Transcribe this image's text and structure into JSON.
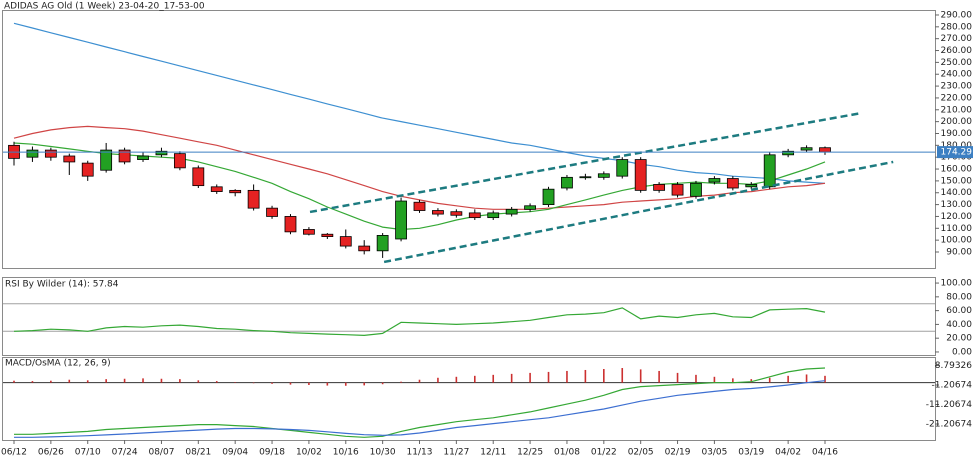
{
  "chart_data": [
    {
      "type": "candlestick",
      "title": "ADIDAS AG Old (1 Week) 23-04-20_17-53-00",
      "categories": [
        "06/12",
        null,
        "06/26",
        null,
        "07/10",
        null,
        "07/24",
        null,
        "08/07",
        null,
        "08/21",
        null,
        "09/04",
        null,
        "09/18",
        null,
        "10/02",
        null,
        "10/16",
        null,
        "10/30",
        null,
        "11/13",
        null,
        "11/27",
        null,
        "12/11",
        null,
        "12/25",
        null,
        "01/08",
        null,
        "01/22",
        null,
        "02/05",
        null,
        "02/19",
        null,
        "03/05",
        null,
        "03/19",
        null,
        "04/02",
        null,
        "04/16"
      ],
      "open": [
        180,
        170,
        176,
        171,
        165,
        159,
        176,
        168,
        172,
        173,
        161,
        145,
        142,
        142,
        127,
        120,
        109,
        105,
        103,
        95,
        91,
        101,
        132,
        125,
        124,
        123,
        119,
        122,
        126,
        130,
        144,
        153,
        153,
        154,
        168,
        147,
        147,
        137,
        149,
        152,
        145,
        145,
        172,
        176,
        178
      ],
      "close": [
        169,
        176,
        170,
        166,
        154,
        176,
        166,
        171,
        175,
        161,
        146,
        141,
        140,
        127,
        120,
        107,
        105,
        103,
        95,
        91,
        104,
        133,
        125,
        122,
        121,
        119,
        123,
        126,
        129,
        143,
        153,
        153.5,
        156,
        168,
        142,
        142,
        138,
        148,
        152,
        144,
        147,
        172,
        175,
        178,
        174.29
      ],
      "high": [
        183,
        179,
        178,
        173,
        167,
        182,
        178,
        174,
        178,
        175,
        163,
        147,
        143,
        147,
        129,
        122,
        111,
        106,
        109,
        100,
        106,
        136,
        134,
        127,
        126,
        126,
        125,
        128,
        131,
        145,
        155,
        156,
        158,
        170,
        170,
        149,
        149,
        150,
        154,
        154,
        149,
        174,
        177,
        180,
        179
      ],
      "low": [
        163,
        166,
        167,
        155,
        150,
        157,
        164,
        166,
        170,
        159,
        144,
        139,
        137,
        125,
        118,
        105,
        104,
        101,
        93,
        88,
        85,
        99,
        123,
        120,
        119,
        117,
        117,
        120,
        124,
        128,
        142,
        151,
        151,
        152,
        140,
        140,
        136,
        135,
        147,
        142,
        143,
        143,
        170,
        174,
        172
      ],
      "up_color": "#22a022",
      "down_color": "#e52222",
      "overlays": [
        {
          "color": "#3d8fd1",
          "values": [
            283,
            279,
            275,
            271,
            267,
            263,
            259,
            255,
            251,
            247,
            243,
            239,
            235,
            231,
            227,
            223,
            219,
            215,
            211,
            207,
            203,
            200,
            197,
            194,
            191,
            188,
            185,
            182,
            180,
            177,
            174,
            171,
            169,
            167,
            164,
            162,
            159,
            157,
            156,
            154,
            153,
            152,
            150,
            149,
            148
          ]
        },
        {
          "color": "#d04545",
          "values": [
            186,
            190,
            193,
            195,
            196,
            195,
            194,
            192,
            189,
            186,
            183,
            180,
            176,
            172,
            168,
            164,
            160,
            156,
            151,
            146,
            141,
            137,
            134,
            131,
            129,
            127,
            126,
            126,
            126,
            127,
            128,
            129,
            130,
            132,
            133,
            134,
            135,
            137,
            138,
            140,
            141,
            143,
            145,
            146,
            148
          ]
        },
        {
          "color": "#35a835",
          "values": [
            182,
            181,
            179,
            177,
            175,
            173,
            172,
            171,
            170,
            169,
            166,
            162,
            158,
            153,
            148,
            141,
            135,
            128,
            122,
            116,
            111,
            109,
            110,
            113,
            117,
            120,
            122,
            123,
            124,
            126,
            130,
            134,
            138,
            142,
            145,
            147,
            148,
            149,
            148,
            148,
            147,
            150,
            155,
            160,
            166
          ]
        }
      ],
      "trendlines": [
        {
          "color": "#1d7b80",
          "x": [
            16.06,
            46.0
          ],
          "y": [
            123.8,
            207.3
          ]
        },
        {
          "color": "#1d7b80",
          "x": [
            20.08,
            47.7
          ],
          "y": [
            81.6,
            166.0
          ]
        }
      ],
      "last_price": 174.29,
      "last_price_color": "#3c7fc2",
      "ylim": [
        76.5,
        294.2
      ],
      "yticks": [
        {
          "value": 90,
          "label": "90.00"
        },
        {
          "value": 100,
          "label": "100.00"
        },
        {
          "value": 110,
          "label": "110.00"
        },
        {
          "value": 120,
          "label": "120.00"
        },
        {
          "value": 130,
          "label": "130.00"
        },
        {
          "value": 140,
          "label": "140.00"
        },
        {
          "value": 150,
          "label": "150.00"
        },
        {
          "value": 160,
          "label": "160.00"
        },
        {
          "value": 170,
          "label": "170.00"
        },
        {
          "value": 180,
          "label": "180.00"
        },
        {
          "value": 190,
          "label": "190.00"
        },
        {
          "value": 200,
          "label": "200.00"
        },
        {
          "value": 210,
          "label": "210.00"
        },
        {
          "value": 220,
          "label": "220.00"
        },
        {
          "value": 230,
          "label": "230.00"
        },
        {
          "value": 240,
          "label": "240.00"
        },
        {
          "value": 250,
          "label": "250.00"
        },
        {
          "value": 260,
          "label": "260.00"
        },
        {
          "value": 270,
          "label": "270.00"
        },
        {
          "value": 280,
          "label": "280.00"
        },
        {
          "value": 290,
          "label": "290.00"
        }
      ]
    },
    {
      "type": "line",
      "title": "RSI By Wilder (14): 57.84",
      "color": "#35a835",
      "values": [
        30,
        31,
        33,
        32,
        30,
        35,
        37,
        36,
        38,
        39,
        37,
        34,
        33,
        31,
        30,
        28,
        27,
        26,
        25,
        24,
        27,
        43,
        42,
        41,
        40,
        41,
        42,
        44,
        46,
        50,
        54,
        55,
        57,
        64,
        48,
        52,
        50,
        54,
        56,
        51,
        50,
        61,
        62,
        63,
        57.84
      ],
      "levels": [
        30,
        70
      ],
      "level_color": "#a0a0a0",
      "ylim": [
        -4.4,
        108.8
      ],
      "yticks": [
        {
          "value": 0,
          "label": "0.00"
        },
        {
          "value": 20,
          "label": "20.00"
        },
        {
          "value": 40,
          "label": "40.00"
        },
        {
          "value": 60,
          "label": "60.00"
        },
        {
          "value": 80,
          "label": "80.00"
        },
        {
          "value": 100,
          "label": "100.00"
        }
      ]
    },
    {
      "type": "macd",
      "title": "MACD/OsMA (12, 26, 9)",
      "histogram": {
        "color": "#cc3030",
        "values": [
          1.0,
          0.8,
          1.0,
          1.5,
          1.2,
          1.8,
          2.0,
          2.2,
          2.0,
          1.8,
          1.2,
          0.8,
          0.3,
          -0.3,
          -0.6,
          -1.0,
          -1.2,
          -1.5,
          -1.6,
          -1.4,
          -0.8,
          0.5,
          1.5,
          2.5,
          3.0,
          3.5,
          4.0,
          4.5,
          5.0,
          5.5,
          6.0,
          6.5,
          7.0,
          7.5,
          6.8,
          6.0,
          5.0,
          4.0,
          3.0,
          2.2,
          1.8,
          2.5,
          3.5,
          4.2,
          3.5
        ]
      },
      "series": [
        {
          "color": "#35a835",
          "values": [
            -26.5,
            -26.5,
            -26,
            -25.5,
            -25,
            -24,
            -23.5,
            -23,
            -22.5,
            -22,
            -21.5,
            -21.5,
            -22,
            -22.5,
            -23.5,
            -24.5,
            -25.5,
            -26.5,
            -27.5,
            -28,
            -27.5,
            -25,
            -23,
            -21.5,
            -20,
            -19,
            -18,
            -16.5,
            -15,
            -13,
            -11,
            -9,
            -6.5,
            -3.5,
            -2,
            -1.5,
            -1,
            -0.5,
            0,
            0,
            0.5,
            3,
            5.5,
            7,
            7.5
          ]
        },
        {
          "color": "#3d6fd1",
          "values": [
            -28,
            -28,
            -27.8,
            -27.5,
            -27.2,
            -26.8,
            -26.3,
            -25.8,
            -25.3,
            -24.8,
            -24.3,
            -23.8,
            -23.5,
            -23.5,
            -23.7,
            -24,
            -24.5,
            -25.2,
            -26,
            -26.7,
            -27,
            -26.8,
            -25.8,
            -24.5,
            -23,
            -22,
            -21,
            -20,
            -19,
            -18,
            -16.5,
            -15,
            -13.5,
            -11.5,
            -9.5,
            -8,
            -6.5,
            -5.5,
            -4.5,
            -3.5,
            -3,
            -2.2,
            -1.2,
            0,
            1.0
          ]
        }
      ],
      "ylim": [
        -29.4,
        13.15
      ],
      "yticks": [
        {
          "value": -21.20674,
          "label": "-21.20674"
        },
        {
          "value": -11.20674,
          "label": "-11.20674"
        },
        {
          "value": -1.20674,
          "label": "-1.20674"
        },
        {
          "value": 8.79326,
          "label": "8.79326"
        }
      ]
    }
  ]
}
